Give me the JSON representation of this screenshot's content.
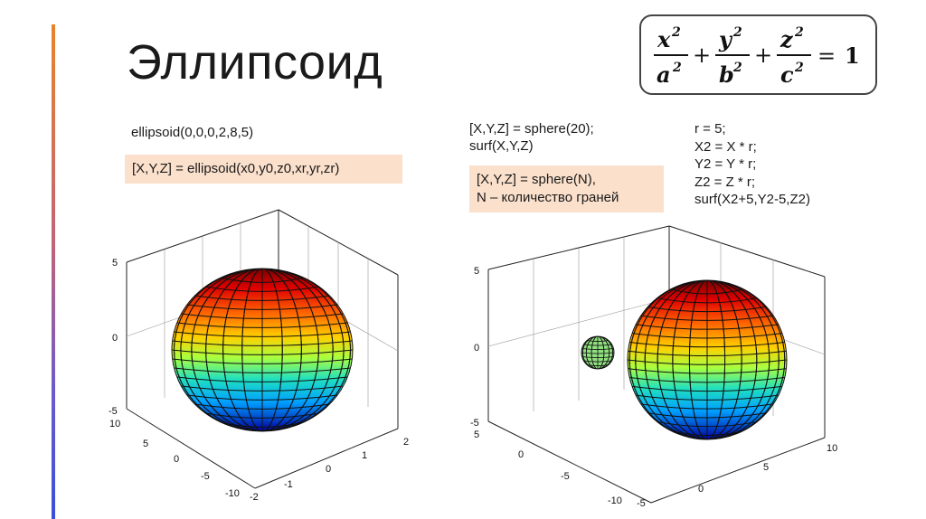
{
  "slide": {
    "title": "Эллипсоид",
    "formula": {
      "terms": [
        {
          "num": "x",
          "den": "a"
        },
        {
          "num": "y",
          "den": "b"
        },
        {
          "num": "z",
          "den": "c"
        }
      ],
      "exponent": "2",
      "plus": "+",
      "equals": "=",
      "rhs": "1"
    }
  },
  "left": {
    "command": "ellipsoid(0,0,0,2,8,5)",
    "note": "[X,Y,Z] = ellipsoid(x0,y0,z0,xr,yr,zr)",
    "z_ticks": [
      "5",
      "0",
      "-5"
    ],
    "y_ticks": [
      "10",
      "5",
      "0",
      "-5",
      "-10"
    ],
    "x_ticks": [
      "-2",
      "-1",
      "0",
      "1",
      "2"
    ]
  },
  "right": {
    "code_a": [
      "[X,Y,Z] = sphere(20);",
      "surf(X,Y,Z)"
    ],
    "note": [
      "[X,Y,Z] = sphere(N),",
      "N – количество граней"
    ],
    "code_b": [
      "r = 5;",
      "X2 = X * r;",
      "Y2 = Y * r;",
      "Z2 = Z * r;",
      "surf(X2+5,Y2-5,Z2)"
    ],
    "z_ticks": [
      "5",
      "0",
      "-5"
    ],
    "y_ticks": [
      "5",
      "0",
      "-5",
      "-10"
    ],
    "x_ticks": [
      "-5",
      "0",
      "5",
      "10"
    ]
  },
  "colors": {
    "accent_top": "#e8832a",
    "accent_bottom": "#3b4fd8",
    "note_bg": "#fbe0cc",
    "small_sphere": "#90e080"
  }
}
